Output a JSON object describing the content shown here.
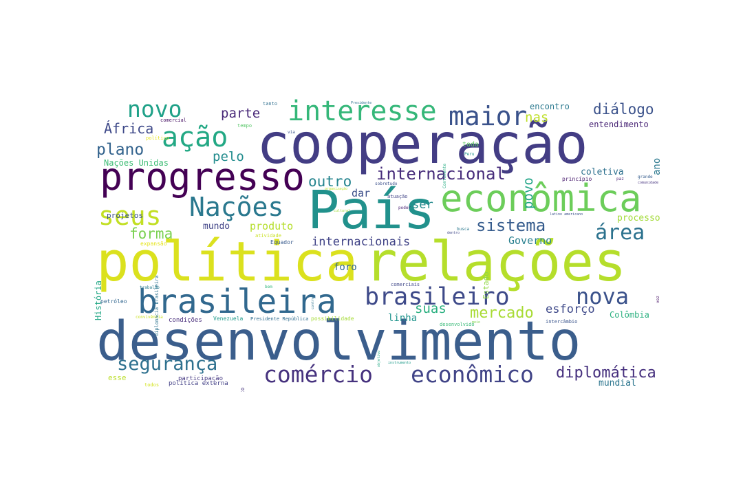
{
  "wordcloud": {
    "words": [
      {
        "text": "desenvolvimento",
        "color": "#3b5e8c"
      },
      {
        "text": "cooperação",
        "color": "#433d84"
      },
      {
        "text": "política",
        "color": "#dbe11e"
      },
      {
        "text": "relações",
        "color": "#b5de2b"
      },
      {
        "text": "País",
        "color": "#21918c"
      },
      {
        "text": "econômica",
        "color": "#6ccd5a"
      },
      {
        "text": "progresso",
        "color": "#440154"
      },
      {
        "text": "brasileira",
        "color": "#31688e"
      },
      {
        "text": "Nações",
        "color": "#2a788e"
      },
      {
        "text": "brasileiro",
        "color": "#3e4a89"
      },
      {
        "text": "interesse",
        "color": "#35b779"
      },
      {
        "text": "ação",
        "color": "#22a884"
      },
      {
        "text": "comércio",
        "color": "#46327e"
      },
      {
        "text": "econômico",
        "color": "#414487"
      },
      {
        "text": "segurança",
        "color": "#2d708e"
      },
      {
        "text": "maior",
        "color": "#3a528b"
      },
      {
        "text": "novo",
        "color": "#1fa188"
      },
      {
        "text": "seus",
        "color": "#c2df23"
      },
      {
        "text": "nova",
        "color": "#3b528b"
      },
      {
        "text": "internacional",
        "color": "#472d7b"
      },
      {
        "text": "sistema",
        "color": "#365c8d"
      },
      {
        "text": "área",
        "color": "#2c728e"
      },
      {
        "text": "plano",
        "color": "#33638d"
      },
      {
        "text": "diplomática",
        "color": "#46307e"
      },
      {
        "text": "mercado",
        "color": "#a8db34"
      },
      {
        "text": "diálogo",
        "color": "#3b528b"
      },
      {
        "text": "forma",
        "color": "#7ad151"
      },
      {
        "text": "África",
        "color": "#3e4989"
      },
      {
        "text": "outro",
        "color": "#25848e"
      },
      {
        "text": "parte",
        "color": "#482878"
      },
      {
        "text": "pelo",
        "color": "#228c8d"
      },
      {
        "text": "povo",
        "color": "#20a486"
      },
      {
        "text": "nas",
        "color": "#bddf26"
      },
      {
        "text": "suas",
        "color": "#29af7f"
      },
      {
        "text": "internacionais",
        "color": "#414487"
      },
      {
        "text": "esforço",
        "color": "#3e4989"
      },
      {
        "text": "produto",
        "color": "#b5de2b"
      },
      {
        "text": "Governo",
        "color": "#277f8e"
      },
      {
        "text": "ser",
        "color": "#238a8d"
      },
      {
        "text": "dar",
        "color": "#3c4f8a"
      },
      {
        "text": "ano",
        "color": "#2a778e"
      },
      {
        "text": "coletiva",
        "color": "#2d708e"
      },
      {
        "text": "processo",
        "color": "#a2da37"
      },
      {
        "text": "mundo",
        "color": "#414487"
      },
      {
        "text": "foro",
        "color": "#31678e"
      },
      {
        "text": "linha",
        "color": "#1f948c"
      },
      {
        "text": "mundial",
        "color": "#2b758e"
      },
      {
        "text": "Colômbia",
        "color": "#2ab07f"
      },
      {
        "text": "encontro",
        "color": "#2a788e"
      },
      {
        "text": "entendimento",
        "color": "#482475"
      },
      {
        "text": "Nações Unidas",
        "color": "#3dbc74"
      },
      {
        "text": "projetos",
        "color": "#3b528b"
      },
      {
        "text": "esse",
        "color": "#bade28"
      },
      {
        "text": "História",
        "color": "#22a785"
      },
      {
        "text": "Estado",
        "color": "#8fd744"
      },
      {
        "text": "diplomacia brasileira",
        "color": "#2c728e"
      },
      {
        "text": "Equador",
        "color": "#375a8c"
      },
      {
        "text": "atividade",
        "color": "#c8e020"
      },
      {
        "text": "expansão",
        "color": "#e5e419"
      },
      {
        "text": "condições",
        "color": "#472c7a"
      },
      {
        "text": "Venezuela",
        "color": "#1f9a8a"
      },
      {
        "text": "Presidente República",
        "color": "#2f6c8e"
      },
      {
        "text": "possibilidade",
        "color": "#a5db36"
      },
      {
        "text": "desenvolvido",
        "color": "#38b977"
      },
      {
        "text": "intercâmbio",
        "color": "#3a548c"
      },
      {
        "text": "participação",
        "color": "#453882"
      },
      {
        "text": "política externa",
        "color": "#424086"
      },
      {
        "text": "petróleo",
        "color": "#31668e"
      },
      {
        "text": "trabalho",
        "color": "#287c8e"
      },
      {
        "text": "convivência",
        "color": "#cae11f"
      },
      {
        "text": "todos",
        "color": "#d2e21b"
      },
      {
        "text": "direito",
        "color": "#45337d"
      },
      {
        "text": "comerciais",
        "color": "#3f4788"
      },
      {
        "text": "comercial",
        "color": "#471164"
      },
      {
        "text": "tanto",
        "color": "#2e6e8e"
      },
      {
        "text": "tempo",
        "color": "#56c667"
      },
      {
        "text": "via",
        "color": "#3a538b"
      },
      {
        "text": "político",
        "color": "#e7e419"
      },
      {
        "text": "Presidente",
        "color": "#2c718e"
      },
      {
        "text": "Continente",
        "color": "#25ac82"
      },
      {
        "text": "Peru",
        "color": "#1f948c"
      },
      {
        "text": "toda",
        "color": "#5ec962"
      },
      {
        "text": "princípio",
        "color": "#481b6d"
      },
      {
        "text": "grande",
        "color": "#365d8d"
      },
      {
        "text": "paz",
        "color": "#482475"
      },
      {
        "text": "comunidade",
        "color": "#46337f"
      },
      {
        "text": "sobretudo",
        "color": "#3c508b"
      },
      {
        "text": "atuação",
        "color": "#414487"
      },
      {
        "text": "poder",
        "color": "#482173"
      },
      {
        "text": "latino americano",
        "color": "#3b528b"
      },
      {
        "text": "organização",
        "color": "#bddf26"
      },
      {
        "text": "cultural",
        "color": "#a0da39"
      },
      {
        "text": "busca",
        "color": "#2a788e"
      },
      {
        "text": "dentro",
        "color": "#3f4889"
      },
      {
        "text": "meio",
        "color": "#7fd34e"
      },
      {
        "text": "objetivo",
        "color": "#22a884"
      },
      {
        "text": "instrumento",
        "color": "#1e9b8a"
      },
      {
        "text": "contra",
        "color": "#2c738e"
      },
      {
        "text": "bem",
        "color": "#31b57b"
      },
      {
        "text": "vez",
        "color": "#481467"
      }
    ]
  }
}
